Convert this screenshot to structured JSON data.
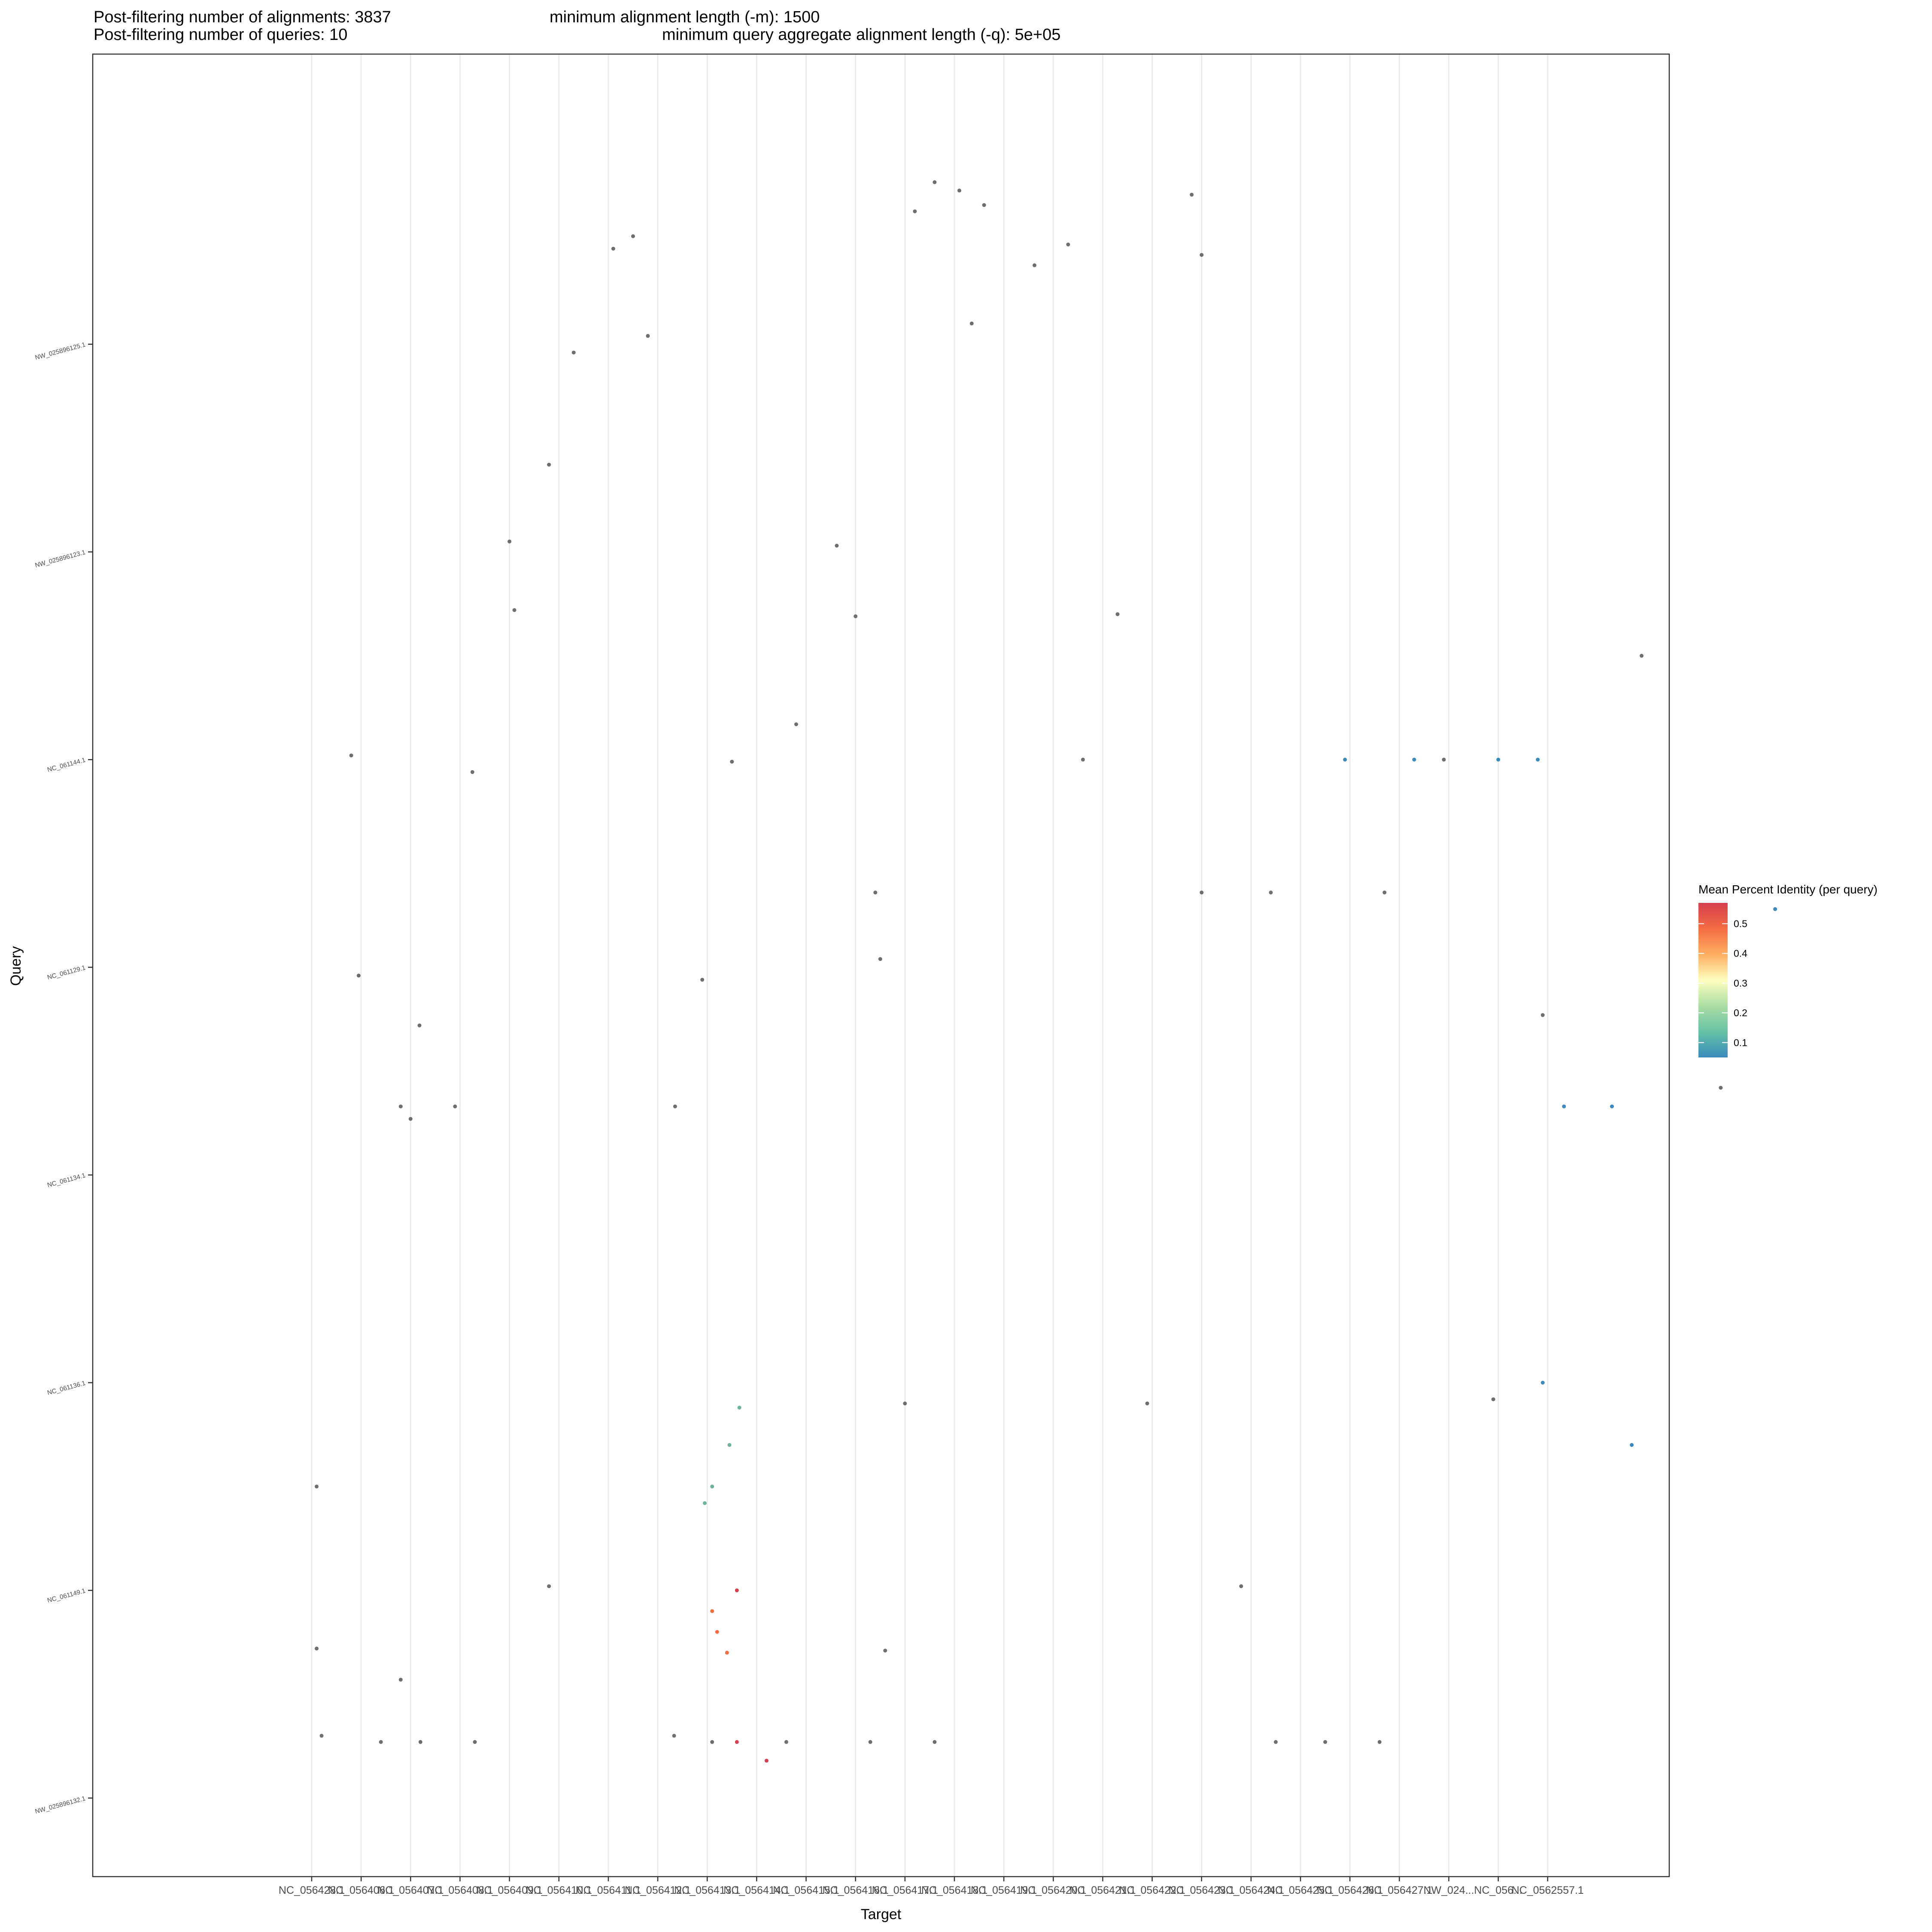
{
  "header": {
    "alignments": "Post-filtering number of alignments: 3837",
    "queries": "Post-filtering number of queries: 10",
    "min_length": "minimum alignment length (-m): 1500",
    "min_query": "minimum query aggregate alignment length (-q): 5e+05"
  },
  "colors": {
    "panel_border": "#333333",
    "grid": "#ebebeb",
    "point_gray": "#6e6e6e",
    "gradient": [
      "#3a8bbb",
      "#66c2a5",
      "#abdda4",
      "#ffffbf",
      "#fdae61",
      "#f46d43",
      "#d53e4f"
    ]
  },
  "chart_data": {
    "type": "scatter",
    "xlabel": "Target",
    "ylabel": "Query",
    "grid": true,
    "legend_position": "right",
    "targets": [
      "NC_056428.1",
      "NC_056406.1",
      "NC_056407.1",
      "NC_056408.1",
      "NC_056409.1",
      "NC_056410.1",
      "NC_056411.1",
      "NC_056412.1",
      "NC_056413.1",
      "NC_056414.1",
      "NC_056415.1",
      "NC_056416.1",
      "NC_056417.1",
      "NC_056418.1",
      "NC_056419.1",
      "NC_056420.1",
      "NC_056421.1",
      "NC_056422.1",
      "NC_056423.1",
      "NC_056424.1",
      "NC_056425.1",
      "NC_056426.1",
      "NC_056427.1",
      "NW_024...",
      "NC_056...",
      "NC_0562557.1"
    ],
    "queries": [
      "NW_025896132.1",
      "NC_061149.1",
      "NC_061136.1",
      "NC_061134.1",
      "NC_061129.1",
      "NC_061144.1",
      "NW_025896123.1",
      "NW_025896125.1"
    ],
    "legend": {
      "title": "Mean Percent Identity (per query)",
      "min": 0.05,
      "max": 0.57,
      "ticks": [
        0.1,
        0.2,
        0.3,
        0.4,
        0.5
      ],
      "tick_labels": [
        "0.1",
        "0.2",
        "0.3",
        "0.4",
        "0.5"
      ]
    },
    "series": [
      {
        "color": "#6e6e6e",
        "points": [
          [
            0.1,
            0.72
          ],
          [
            0.2,
            0.3
          ],
          [
            0.1,
            1.5
          ],
          [
            0.95,
            3.96
          ],
          [
            2.0,
            3.27
          ],
          [
            2.18,
            3.72
          ],
          [
            3.25,
            4.94
          ],
          [
            4.1,
            5.72
          ],
          [
            4.8,
            6.42
          ],
          [
            5.3,
            6.96
          ],
          [
            6.1,
            7.46
          ],
          [
            6.8,
            7.04
          ],
          [
            6.5,
            7.52
          ],
          [
            7.33,
            0.3
          ],
          [
            7.35,
            3.33
          ],
          [
            7.9,
            3.94
          ],
          [
            8.5,
            4.99
          ],
          [
            9.8,
            5.17
          ],
          [
            10.62,
            6.03
          ],
          [
            11.0,
            5.69
          ],
          [
            11.4,
            4.36
          ],
          [
            11.5,
            4.04
          ],
          [
            12.2,
            7.64
          ],
          [
            12.6,
            7.78
          ],
          [
            13.1,
            7.74
          ],
          [
            13.6,
            7.67
          ],
          [
            13.35,
            7.1
          ],
          [
            14.62,
            7.38
          ],
          [
            15.3,
            7.48
          ],
          [
            17.8,
            7.72
          ],
          [
            18.0,
            7.43
          ],
          [
            15.6,
            5.0
          ],
          [
            16.3,
            5.7
          ],
          [
            18.0,
            4.36
          ],
          [
            19.4,
            4.36
          ],
          [
            21.7,
            4.36
          ],
          [
            22.9,
            5.0
          ],
          [
            24.9,
            3.77
          ],
          [
            26.9,
            5.5
          ],
          [
            28.5,
            3.42
          ],
          [
            0.8,
            5.02
          ],
          [
            1.8,
            3.33
          ],
          [
            2.9,
            3.33
          ],
          [
            4.0,
            6.05
          ],
          [
            4.8,
            1.02
          ],
          [
            11.6,
            0.71
          ],
          [
            12.0,
            1.9
          ],
          [
            16.9,
            1.9
          ],
          [
            18.8,
            1.02
          ],
          [
            23.9,
            1.92
          ],
          [
            1.4,
            0.27
          ],
          [
            2.2,
            0.27
          ],
          [
            1.8,
            0.57
          ],
          [
            3.3,
            0.27
          ],
          [
            8.1,
            0.27
          ],
          [
            9.6,
            0.27
          ],
          [
            11.3,
            0.27
          ],
          [
            12.6,
            0.27
          ],
          [
            19.5,
            0.27
          ],
          [
            20.5,
            0.27
          ],
          [
            21.6,
            0.27
          ]
        ]
      },
      {
        "color": "#3a8bbb",
        "points": [
          [
            20.9,
            5.0
          ],
          [
            22.3,
            5.0
          ],
          [
            24.0,
            5.0
          ],
          [
            24.8,
            5.0
          ],
          [
            25.33,
            3.33
          ],
          [
            26.3,
            3.33
          ],
          [
            28.6,
            4.28
          ],
          [
            29.6,
            4.28
          ],
          [
            24.9,
            2.0
          ],
          [
            26.7,
            1.7
          ]
        ]
      },
      {
        "color": "#6fb39f",
        "points": [
          [
            7.95,
            1.42
          ],
          [
            8.1,
            1.5
          ],
          [
            8.45,
            1.7
          ],
          [
            8.65,
            1.88
          ]
        ]
      },
      {
        "color": "#d53e4f",
        "points": [
          [
            8.6,
            0.27
          ],
          [
            8.6,
            1.0
          ],
          [
            9.2,
            0.18
          ]
        ]
      },
      {
        "color": "#f46d43",
        "points": [
          [
            8.1,
            0.9
          ],
          [
            8.2,
            0.8
          ],
          [
            8.4,
            0.7
          ]
        ]
      }
    ]
  }
}
